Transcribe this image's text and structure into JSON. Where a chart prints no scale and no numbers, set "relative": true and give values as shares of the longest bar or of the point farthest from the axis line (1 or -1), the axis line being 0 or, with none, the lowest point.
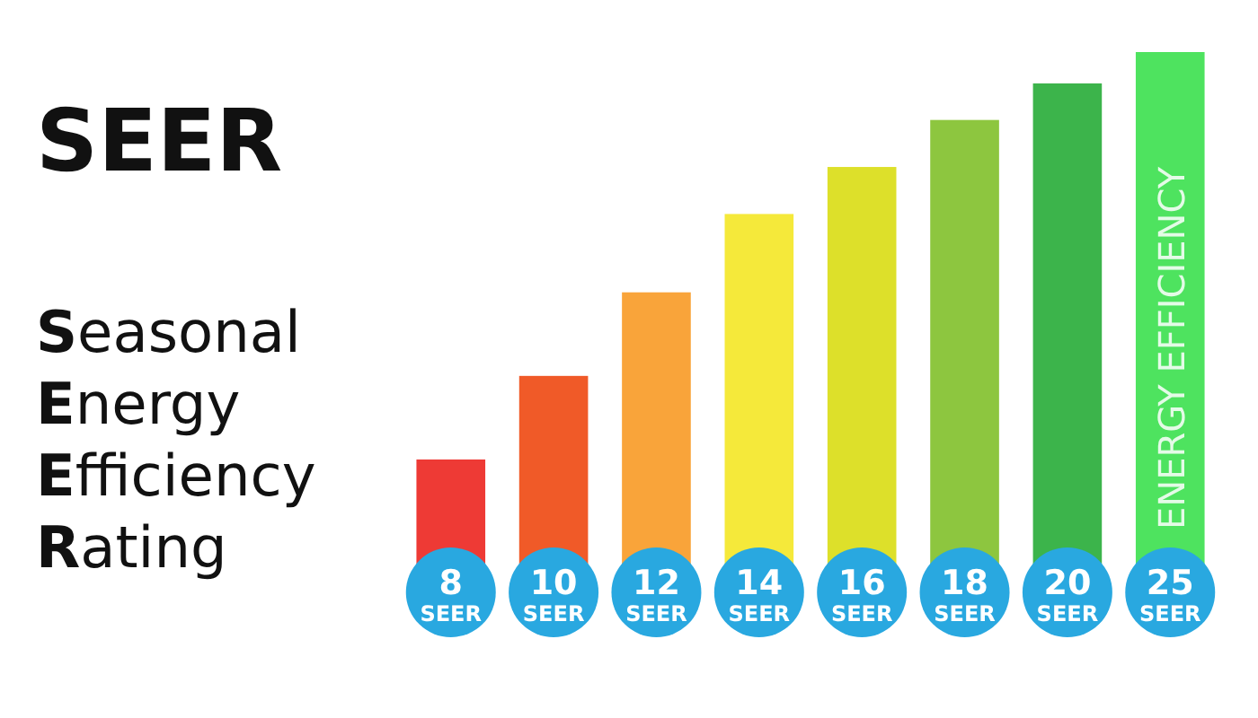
{
  "chart_data": {
    "type": "bar",
    "title": "SEER",
    "subtitle": "Seasonal Energy Efficiency Rating",
    "categories": [
      "8 SEER",
      "10 SEER",
      "12 SEER",
      "14 SEER",
      "16 SEER",
      "18 SEER",
      "20 SEER",
      "25 SEER"
    ],
    "values": [
      0.22,
      0.38,
      0.54,
      0.69,
      0.78,
      0.87,
      0.94,
      1
    ],
    "colors": [
      "#ee3a35",
      "#f05a28",
      "#f9a43a",
      "#f5e93a",
      "#dde02a",
      "#8dc63f",
      "#3cb44b",
      "#4ee35f"
    ],
    "relative": true,
    "annotations": [
      "ENERGY EFFICIENCY"
    ]
  }
}
